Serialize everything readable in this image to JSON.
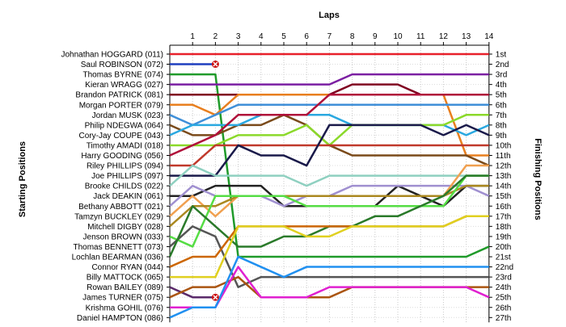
{
  "chart_data": {
    "type": "line",
    "title": "",
    "xlabel": "Laps",
    "ylabel_left": "Starting Positions",
    "ylabel_right": "Finishing Positions",
    "laps": [
      "1",
      "2",
      "3",
      "4",
      "5",
      "6",
      "7",
      "8",
      "9",
      "10",
      "11",
      "12",
      "13",
      "14"
    ],
    "grid": true,
    "finishing_labels": [
      "1st",
      "2nd",
      "3rd",
      "4th",
      "5th",
      "6th",
      "7th",
      "8th",
      "9th",
      "10th",
      "11th",
      "12th",
      "13th",
      "14th",
      "15th",
      "16th",
      "17th",
      "18th",
      "19th",
      "20th",
      "21st",
      "22nd",
      "23rd",
      "24th",
      "25th",
      "26th",
      "27th"
    ],
    "series": [
      {
        "name": "Johnathan HOGGARD (011)",
        "color": "#e8202a",
        "positions": [
          1,
          1,
          1,
          1,
          1,
          1,
          1,
          1,
          1,
          1,
          1,
          1,
          1,
          1,
          1
        ]
      },
      {
        "name": "Saul ROBINSON (072)",
        "color": "#1f3fbf",
        "positions": [
          2,
          2,
          2
        ],
        "retired_after_lap": 2
      },
      {
        "name": "Thomas BYRNE (074)",
        "color": "#1f9a2a",
        "positions": [
          3,
          3,
          3,
          21,
          21,
          21,
          21,
          21,
          21,
          21,
          21,
          21,
          21,
          21,
          20
        ]
      },
      {
        "name": "Kieran WRAGG (027)",
        "color": "#7b1fa2",
        "positions": [
          4,
          4,
          4,
          4,
          4,
          4,
          4,
          4,
          3,
          3,
          3,
          3,
          3,
          3,
          3
        ]
      },
      {
        "name": "Brandon PATRICK (081)",
        "color": "#800020",
        "positions": [
          5,
          5,
          5,
          5,
          5,
          5,
          5,
          5,
          4,
          4,
          4,
          5,
          5,
          5,
          5
        ]
      },
      {
        "name": "Morgan PORTER (079)",
        "color": "#e87f1f",
        "positions": [
          6,
          6,
          7,
          5,
          5,
          5,
          5,
          5,
          5,
          5,
          5,
          5,
          5,
          11,
          11
        ]
      },
      {
        "name": "Jordan MUSK (023)",
        "color": "#3f8fd8",
        "positions": [
          7,
          8,
          7,
          6,
          6,
          6,
          6,
          6,
          6,
          6,
          6,
          6,
          6,
          6,
          6
        ]
      },
      {
        "name": "Philip NDEGWA (064)",
        "color": "#7a4a1a",
        "positions": [
          8,
          9,
          9,
          8,
          8,
          7,
          8,
          10,
          11,
          11,
          11,
          11,
          11,
          11,
          12
        ]
      },
      {
        "name": "Cory-Jay COUPE (043)",
        "color": "#2aa8e0",
        "positions": [
          9,
          8,
          8,
          8,
          7,
          7,
          7,
          7,
          8,
          8,
          8,
          8,
          8,
          9,
          8
        ]
      },
      {
        "name": "Timothy AMADI (018)",
        "color": "#8bd92a",
        "positions": [
          10,
          10,
          10,
          9,
          9,
          9,
          8,
          10,
          8,
          8,
          8,
          8,
          8,
          7,
          7
        ]
      },
      {
        "name": "Harry GOODING (056)",
        "color": "#b0103a",
        "positions": [
          11,
          10,
          9,
          7,
          7,
          7,
          7,
          5,
          5,
          5,
          5,
          5,
          5,
          5,
          5
        ]
      },
      {
        "name": "Riley PHILLIPS (094)",
        "color": "#c0392b",
        "positions": [
          12,
          12,
          10,
          10,
          10,
          10,
          10,
          10,
          10,
          10,
          10,
          10,
          10,
          10,
          10
        ]
      },
      {
        "name": "Joe PHILLIPS (097)",
        "color": "#1a1a4a",
        "positions": [
          13,
          13,
          13,
          10,
          11,
          11,
          12,
          8,
          8,
          8,
          8,
          8,
          9,
          8,
          9
        ]
      },
      {
        "name": "Brooke CHILDS (022)",
        "color": "#8fd0c0",
        "positions": [
          14,
          12,
          13,
          13,
          13,
          13,
          14,
          13,
          13,
          13,
          13,
          13,
          13,
          13,
          13
        ]
      },
      {
        "name": "Jack DEAKIN (061)",
        "color": "#222222",
        "positions": [
          15,
          15,
          14,
          14,
          14,
          16,
          16,
          16,
          16,
          16,
          14,
          15,
          16,
          14,
          14
        ]
      },
      {
        "name": "Bethany ABBOTT (021)",
        "color": "#a090d0",
        "positions": [
          16,
          14,
          15,
          15,
          15,
          16,
          15,
          15,
          14,
          14,
          14,
          14,
          14,
          14,
          15
        ]
      },
      {
        "name": "Tamzyn BUCKLEY (029)",
        "color": "#f0a050",
        "positions": [
          17,
          15,
          17,
          15,
          15,
          15,
          15,
          15,
          15,
          15,
          15,
          15,
          15,
          12,
          12
        ]
      },
      {
        "name": "Mitchell DIGBY (028)",
        "color": "#aa8820",
        "positions": [
          18,
          16,
          16,
          15,
          15,
          15,
          15,
          15,
          15,
          15,
          15,
          15,
          15,
          14,
          14
        ]
      },
      {
        "name": "Jenson BROWN (033)",
        "color": "#55dd44",
        "positions": [
          19,
          20,
          15,
          15,
          15,
          15,
          16,
          16,
          16,
          16,
          16,
          16,
          16,
          13,
          13
        ]
      },
      {
        "name": "Thomas BENNETT (073)",
        "color": "#555555",
        "positions": [
          20,
          18,
          19,
          24,
          23,
          23,
          23,
          23,
          23,
          23,
          23,
          23,
          23,
          23,
          23
        ]
      },
      {
        "name": "Lochlan BEARMAN (036)",
        "color": "#2a7a2a",
        "positions": [
          21,
          16,
          18,
          20,
          20,
          19,
          19,
          18,
          18,
          17,
          17,
          16,
          15,
          13,
          13
        ]
      },
      {
        "name": "Connor RYAN (044)",
        "color": "#cc6600",
        "positions": [
          22,
          21,
          21,
          18,
          18,
          18,
          18,
          18,
          18,
          18,
          18,
          18,
          18,
          17,
          17
        ]
      },
      {
        "name": "Billy MATTOCK (065)",
        "color": "#e0d020",
        "positions": [
          23,
          23,
          23,
          18,
          18,
          18,
          19,
          19,
          18,
          18,
          18,
          18,
          18,
          17,
          17
        ]
      },
      {
        "name": "Rowan BAILEY (089)",
        "color": "#5a2a6a",
        "positions": [
          24,
          25,
          25
        ],
        "retired_after_lap": 2
      },
      {
        "name": "James TURNER (075)",
        "color": "#aa5511",
        "positions": [
          25,
          24,
          24,
          23,
          25,
          25,
          25,
          25,
          24,
          24,
          24,
          24,
          24,
          24,
          24
        ]
      },
      {
        "name": "Krishma GOHIL (076)",
        "color": "#e020d0",
        "positions": [
          26,
          26,
          26,
          22,
          25,
          25,
          25,
          24,
          24,
          24,
          24,
          24,
          24,
          24,
          25
        ]
      },
      {
        "name": "Daniel HAMPTON (086)",
        "color": "#2090f0",
        "positions": [
          27,
          26,
          26,
          21,
          22,
          23,
          22,
          22,
          22,
          22,
          22,
          22,
          22,
          22,
          22
        ]
      }
    ],
    "retire_marker": "red-cross"
  }
}
